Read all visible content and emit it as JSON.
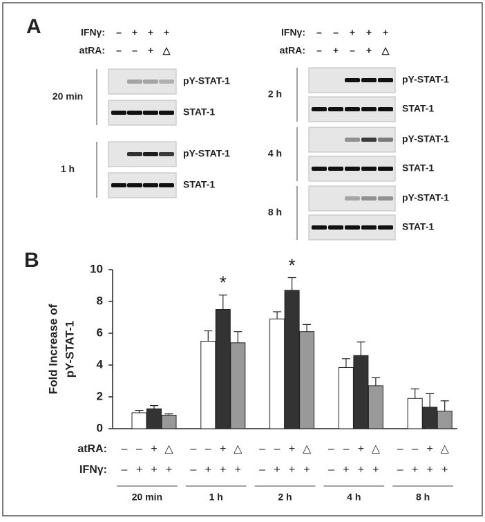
{
  "panel_a": {
    "label": "A",
    "left": {
      "rows": [
        {
          "label": "IFNγ:",
          "marks": [
            "–",
            "+",
            "+",
            "+"
          ]
        },
        {
          "label": "atRA:",
          "marks": [
            "–",
            "–",
            "+",
            "△"
          ]
        }
      ],
      "blots": [
        {
          "time": "20 min",
          "bands": [
            "pY-STAT-1",
            "STAT-1"
          ]
        },
        {
          "time": "1 h",
          "bands": [
            "pY-STAT-1",
            "STAT-1"
          ]
        }
      ]
    },
    "right": {
      "rows": [
        {
          "label": "IFNγ:",
          "marks": [
            "–",
            "–",
            "+",
            "+",
            "+"
          ]
        },
        {
          "label": "atRA:",
          "marks": [
            "–",
            "+",
            "–",
            "+",
            "△"
          ]
        }
      ],
      "blots": [
        {
          "time": "2 h",
          "bands": [
            "pY-STAT-1",
            "STAT-1"
          ]
        },
        {
          "time": "4 h",
          "bands": [
            "pY-STAT-1",
            "STAT-1"
          ]
        },
        {
          "time": "8 h",
          "bands": [
            "pY-STAT-1",
            "STAT-1"
          ]
        }
      ]
    }
  },
  "chart_data": {
    "type": "bar",
    "label": "B",
    "ylabel": [
      "Fold Increase of",
      "pY-STAT-1"
    ],
    "categories": [
      "20 min",
      "1 h",
      "2 h",
      "4 h",
      "8 h"
    ],
    "condition_rows": [
      {
        "label": "atRA:",
        "marks": [
          "–",
          "–",
          "+",
          "△"
        ]
      },
      {
        "label": "IFNγ:",
        "marks": [
          "–",
          "+",
          "+",
          "+"
        ]
      }
    ],
    "series": [
      {
        "color": "#ffffff",
        "values": [
          1.0,
          5.5,
          6.9,
          3.85,
          1.9
        ],
        "errors": [
          0.15,
          0.65,
          0.45,
          0.55,
          0.6
        ]
      },
      {
        "color": "#333333",
        "values": [
          1.25,
          7.5,
          8.7,
          4.6,
          1.35
        ],
        "errors": [
          0.2,
          0.9,
          0.8,
          0.85,
          0.85
        ],
        "markers": [
          null,
          "*",
          "*",
          null,
          null
        ]
      },
      {
        "color": "#999999",
        "values": [
          0.85,
          5.4,
          6.1,
          2.7,
          1.1
        ],
        "errors": [
          0.08,
          0.7,
          0.45,
          0.5,
          0.65
        ]
      }
    ],
    "ylim": [
      0,
      10
    ],
    "yticks": [
      0,
      2,
      4,
      6,
      8,
      10
    ]
  }
}
